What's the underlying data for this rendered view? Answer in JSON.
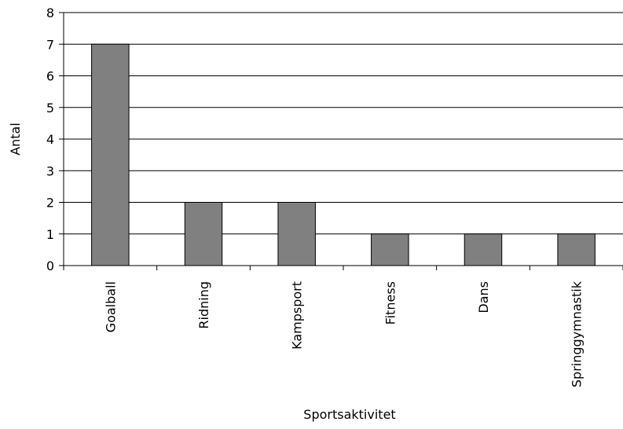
{
  "chart_data": {
    "type": "bar",
    "title": "",
    "xlabel": "Sportsaktivitet",
    "ylabel": "Antal",
    "categories": [
      "Goalball",
      "Ridning",
      "Kampsport",
      "Fitness",
      "Dans",
      "Springgymnastik"
    ],
    "values": [
      7,
      2,
      2,
      1,
      1,
      1
    ],
    "ylim": [
      0,
      8
    ],
    "yticks": [
      "0",
      "1",
      "2",
      "3",
      "4",
      "5",
      "6",
      "7",
      "8"
    ],
    "grid": true,
    "legend": "none",
    "colors": {
      "bar_fill": "#808080",
      "bar_stroke": "#000000",
      "grid": "#000000",
      "axis": "#000000"
    }
  }
}
